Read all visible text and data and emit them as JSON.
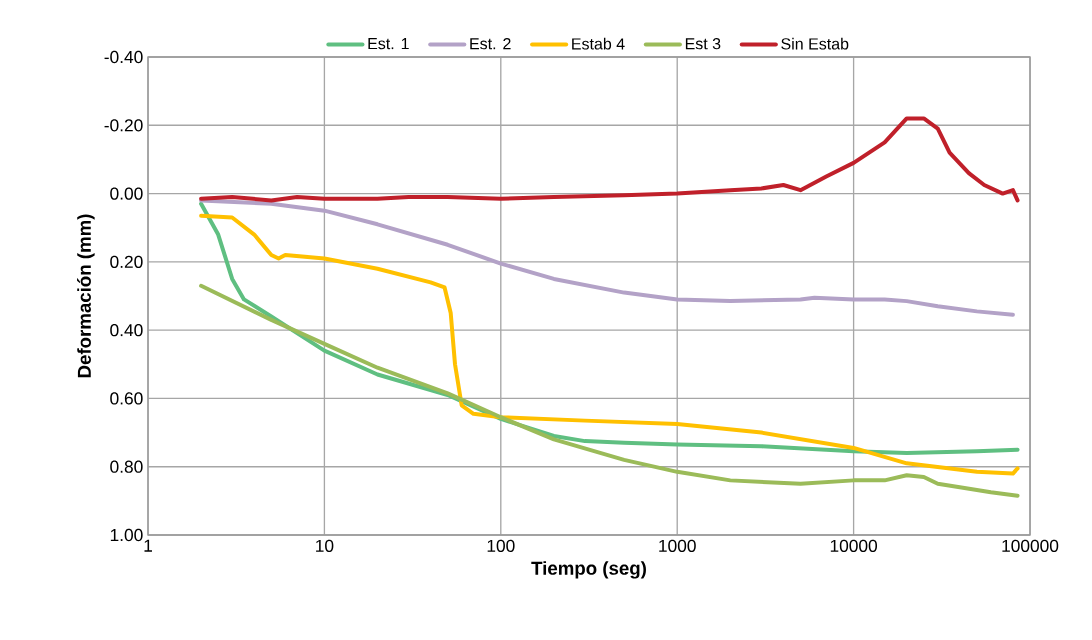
{
  "chart_data": {
    "type": "line",
    "xlabel": "Tiempo (seg)",
    "ylabel": "Deformación (mm)",
    "log": "x",
    "grid": true,
    "legend": "top",
    "marker": "none",
    "line_style": "solid",
    "xlim": [
      1,
      100000
    ],
    "xticks": [
      1,
      10,
      100,
      1000,
      10000,
      100000
    ],
    "ylim": [
      1.0,
      -0.4
    ],
    "yticks": [
      {
        "value": -0.4,
        "label": "-0.40"
      },
      {
        "value": -0.2,
        "label": "-0.20"
      },
      {
        "value": 0,
        "label": "0.00"
      },
      {
        "value": 0.2,
        "label": "0.20"
      },
      {
        "value": 0.4,
        "label": "0.40"
      },
      {
        "value": 0.6,
        "label": "0.60"
      },
      {
        "value": 0.8,
        "label": "0.80"
      },
      {
        "value": 1.0,
        "label": "1.00"
      }
    ],
    "series": [
      {
        "name": "Est. 1",
        "color": "#5fbf81",
        "x": [
          2,
          2.5,
          3,
          3.5,
          5,
          10,
          20,
          50,
          100,
          200,
          300,
          500,
          1000,
          3000,
          10000,
          20000,
          50000,
          85000
        ],
        "values": [
          0.03,
          0.12,
          0.25,
          0.31,
          0.36,
          0.46,
          0.53,
          0.59,
          0.66,
          0.71,
          0.725,
          0.73,
          0.735,
          0.74,
          0.755,
          0.76,
          0.755,
          0.75
        ]
      },
      {
        "name": "Est. 2",
        "color": "#b3a2c7",
        "x": [
          2,
          5,
          10,
          20,
          50,
          100,
          200,
          500,
          1000,
          2000,
          5000,
          6000,
          10000,
          15000,
          20000,
          30000,
          50000,
          80000
        ],
        "values": [
          0.02,
          0.03,
          0.05,
          0.09,
          0.15,
          0.205,
          0.25,
          0.29,
          0.31,
          0.315,
          0.31,
          0.305,
          0.31,
          0.31,
          0.315,
          0.33,
          0.345,
          0.355
        ]
      },
      {
        "name": "Estab 4",
        "color": "#ffc000",
        "x": [
          2,
          3,
          4,
          5,
          5.5,
          6,
          10,
          20,
          40,
          48,
          52,
          55,
          60,
          70,
          100,
          300,
          1000,
          3000,
          10000,
          20000,
          50000,
          80000,
          85000
        ],
        "values": [
          0.065,
          0.07,
          0.12,
          0.18,
          0.19,
          0.18,
          0.19,
          0.22,
          0.26,
          0.275,
          0.35,
          0.5,
          0.62,
          0.645,
          0.655,
          0.665,
          0.675,
          0.7,
          0.745,
          0.79,
          0.815,
          0.82,
          0.805
        ]
      },
      {
        "name": "Est 3",
        "color": "#9bbb59",
        "x": [
          2,
          5,
          10,
          20,
          50,
          100,
          200,
          500,
          1000,
          2000,
          5000,
          10000,
          15000,
          20000,
          25000,
          30000,
          40000,
          60000,
          85000
        ],
        "values": [
          0.27,
          0.37,
          0.44,
          0.51,
          0.585,
          0.655,
          0.72,
          0.78,
          0.815,
          0.84,
          0.85,
          0.84,
          0.84,
          0.825,
          0.83,
          0.85,
          0.86,
          0.875,
          0.885
        ]
      },
      {
        "name": "Sin Estab",
        "color": "#c0202a",
        "x": [
          2,
          3,
          5,
          7,
          10,
          20,
          30,
          50,
          100,
          200,
          500,
          1000,
          2000,
          3000,
          4000,
          5000,
          7000,
          10000,
          15000,
          20000,
          25000,
          30000,
          35000,
          45000,
          55000,
          70000,
          80000,
          85000
        ],
        "values": [
          0.015,
          0.01,
          0.02,
          0.01,
          0.015,
          0.015,
          0.01,
          0.01,
          0.015,
          0.01,
          0.005,
          0.0,
          -0.01,
          -0.015,
          -0.025,
          -0.01,
          -0.05,
          -0.09,
          -0.15,
          -0.22,
          -0.22,
          -0.19,
          -0.12,
          -0.06,
          -0.025,
          0.0,
          -0.01,
          0.02
        ]
      }
    ]
  }
}
